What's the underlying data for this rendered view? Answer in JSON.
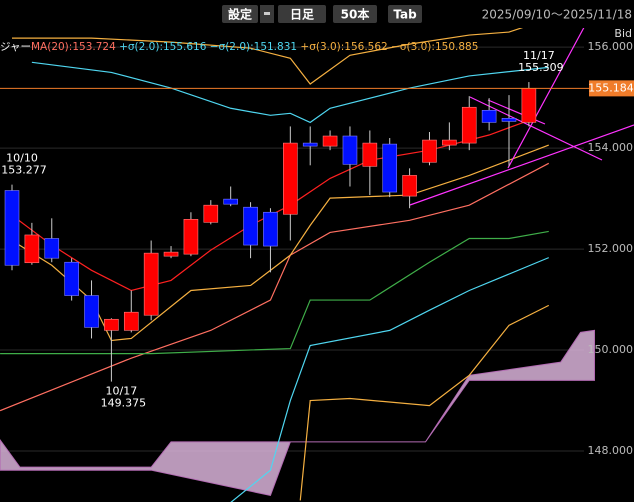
{
  "chart_data": {
    "type": "candlestick",
    "toolbar": {
      "buttons": [
        "設定",
        "日足",
        "50本",
        "Tab"
      ],
      "range": "2025/09/10〜2025/11/18"
    },
    "legend_prefix": "ジャー",
    "legend": [
      {
        "label": "MA(20):",
        "value": 153.724,
        "color": "#ff6f61"
      },
      {
        "label": "+σ(2.0):",
        "value": 155.616,
        "color": "#4fd6f0"
      },
      {
        "label": "−σ(2.0):",
        "value": 151.831,
        "color": "#4fd6f0"
      },
      {
        "label": "+σ(3.0):",
        "value": 156.562,
        "color": "#f5b041"
      },
      {
        "label": "−σ(3.0):",
        "value": 150.885,
        "color": "#f5b041"
      }
    ],
    "side_label": "Bid",
    "ylim": [
      146.99,
      156.38
    ],
    "yticks": [
      {
        "value": 148,
        "label": "148.000"
      },
      {
        "value": 150,
        "label": "150.000"
      },
      {
        "value": 152,
        "label": "152.000"
      },
      {
        "value": 154,
        "label": "154.000"
      },
      {
        "value": 156,
        "label": "156.000"
      }
    ],
    "grid": true,
    "up_color": "#ff0000",
    "down_color": "#0010ff",
    "current": {
      "value": 155.184,
      "label": "155.184",
      "color": "#f07c2a"
    },
    "candles": [
      {
        "open": 153.16,
        "high": 153.277,
        "low": 151.58,
        "close": 151.68
      },
      {
        "open": 151.73,
        "high": 152.52,
        "low": 151.69,
        "close": 152.28
      },
      {
        "open": 152.21,
        "high": 152.61,
        "low": 151.74,
        "close": 151.82
      },
      {
        "open": 151.74,
        "high": 151.82,
        "low": 150.98,
        "close": 151.08
      },
      {
        "open": 151.08,
        "high": 151.38,
        "low": 150.23,
        "close": 150.45
      },
      {
        "open": 150.39,
        "high": 150.63,
        "low": 149.375,
        "close": 150.61
      },
      {
        "open": 150.39,
        "high": 151.18,
        "low": 150.35,
        "close": 150.75
      },
      {
        "open": 150.69,
        "high": 152.17,
        "low": 150.59,
        "close": 151.92
      },
      {
        "open": 151.86,
        "high": 152.06,
        "low": 151.82,
        "close": 151.94
      },
      {
        "open": 151.9,
        "high": 152.73,
        "low": 151.86,
        "close": 152.59
      },
      {
        "open": 152.53,
        "high": 152.97,
        "low": 152.49,
        "close": 152.87
      },
      {
        "open": 152.99,
        "high": 153.24,
        "low": 152.85,
        "close": 152.89
      },
      {
        "open": 152.83,
        "high": 152.93,
        "low": 151.82,
        "close": 152.08
      },
      {
        "open": 152.73,
        "high": 152.81,
        "low": 151.54,
        "close": 152.06
      },
      {
        "open": 152.69,
        "high": 154.43,
        "low": 152.17,
        "close": 154.1
      },
      {
        "open": 154.1,
        "high": 154.43,
        "low": 153.66,
        "close": 154.04
      },
      {
        "open": 154.04,
        "high": 154.35,
        "low": 153.96,
        "close": 154.24
      },
      {
        "open": 154.24,
        "high": 154.43,
        "low": 153.24,
        "close": 153.68
      },
      {
        "open": 153.64,
        "high": 154.35,
        "low": 153.07,
        "close": 154.1
      },
      {
        "open": 154.08,
        "high": 154.2,
        "low": 153.03,
        "close": 153.13
      },
      {
        "open": 153.05,
        "high": 153.6,
        "low": 152.81,
        "close": 153.46
      },
      {
        "open": 153.72,
        "high": 154.32,
        "low": 153.66,
        "close": 154.16
      },
      {
        "open": 154.06,
        "high": 154.51,
        "low": 153.96,
        "close": 154.16
      },
      {
        "open": 154.1,
        "high": 155.03,
        "low": 153.96,
        "close": 154.81
      },
      {
        "open": 154.75,
        "high": 154.99,
        "low": 154.35,
        "close": 154.51
      },
      {
        "open": 154.59,
        "high": 155.05,
        "low": 153.64,
        "close": 154.53
      },
      {
        "open": 154.51,
        "high": 155.309,
        "low": 154.43,
        "close": 155.184
      }
    ],
    "annotations": [
      {
        "date": "10/10",
        "index": 0,
        "field": "high",
        "side": "above"
      },
      {
        "date": "10/17",
        "index": 5,
        "field": "low",
        "side": "below"
      },
      {
        "date": "11/17",
        "index": 26,
        "field": "high",
        "side": "above"
      }
    ],
    "lines": [
      {
        "color": "#f5b041",
        "x": [
          0,
          4,
          8,
          12,
          14,
          15,
          17,
          20,
          23,
          25,
          27
        ],
        "values": [
          156.18,
          156.18,
          156.1,
          155.98,
          155.78,
          155.27,
          155.84,
          156.06,
          156.24,
          156.3,
          156.56
        ]
      },
      {
        "color": "#4fd6f0",
        "x": [
          1,
          5,
          8,
          11,
          13,
          14,
          15,
          16,
          20,
          23,
          27
        ],
        "values": [
          155.7,
          155.5,
          155.19,
          154.79,
          154.65,
          154.69,
          154.51,
          154.79,
          155.19,
          155.43,
          155.6
        ]
      },
      {
        "color": "#ff6f61",
        "x": [
          -0.6,
          6,
          10,
          13,
          14,
          16,
          20,
          23,
          27
        ],
        "values": [
          148.8,
          149.84,
          150.39,
          150.99,
          151.88,
          152.33,
          152.57,
          152.87,
          153.7
        ]
      },
      {
        "color": "#ff2020",
        "x": [
          0,
          2,
          4,
          6,
          8,
          10,
          12,
          14,
          16,
          18,
          21,
          24,
          26
        ],
        "values": [
          152.67,
          152.08,
          151.58,
          151.18,
          151.38,
          151.98,
          152.47,
          152.87,
          153.4,
          153.76,
          153.96,
          154.26,
          154.55
        ]
      },
      {
        "color": "#f5b041",
        "x": [
          0,
          2,
          4,
          5,
          6,
          9,
          12,
          14,
          15,
          16,
          20,
          23,
          27
        ],
        "values": [
          152.17,
          151.68,
          150.99,
          150.19,
          150.23,
          151.18,
          151.28,
          151.88,
          152.47,
          153.01,
          153.07,
          153.46,
          154.06
        ]
      },
      {
        "color": "#3fae49",
        "x": [
          -0.6,
          7,
          14,
          15,
          18,
          21,
          23,
          25,
          27
        ],
        "values": [
          149.93,
          149.93,
          150.03,
          150.99,
          150.99,
          151.74,
          152.21,
          152.21,
          152.35
        ]
      },
      {
        "color": "#4fd6f0",
        "x": [
          11,
          13,
          14,
          15,
          19,
          21,
          23,
          27
        ],
        "values": [
          146.98,
          147.62,
          149.0,
          150.09,
          150.39,
          150.79,
          151.18,
          151.831
        ]
      },
      {
        "color": "#f5b041",
        "x": [
          14.5,
          15,
          17,
          21,
          23,
          25,
          27
        ],
        "values": [
          147.02,
          149.0,
          149.04,
          148.9,
          149.5,
          150.49,
          150.885
        ]
      }
    ],
    "cloud": {
      "color": "#d9b3d9",
      "edge": "#b36bb3",
      "a_x": [
        -0.6,
        0.4,
        7,
        8,
        20.8,
        23,
        27.6,
        28.6,
        29.3
      ],
      "a": [
        148.22,
        147.68,
        147.68,
        148.18,
        148.18,
        149.5,
        149.76,
        150.35,
        150.39
      ],
      "b_x": [
        -0.6,
        7,
        13,
        14,
        20.8,
        23,
        29.3
      ],
      "b": [
        147.62,
        147.62,
        147.12,
        148.18,
        148.18,
        149.4,
        149.4
      ]
    }
  }
}
